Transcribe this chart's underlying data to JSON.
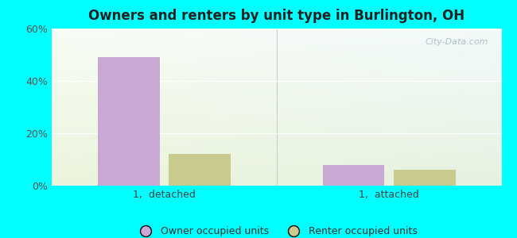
{
  "title": "Owners and renters by unit type in Burlington, OH",
  "categories": [
    "1,  detached",
    "1,  attached"
  ],
  "owner_values": [
    49,
    8
  ],
  "renter_values": [
    12,
    6
  ],
  "owner_color": "#c9a8d4",
  "renter_color": "#c8ca8e",
  "ylim": [
    0,
    60
  ],
  "yticks": [
    0,
    20,
    40,
    60
  ],
  "ytick_labels": [
    "0%",
    "20%",
    "40%",
    "60%"
  ],
  "outer_bg": "#00ffff",
  "watermark": "City-Data.com",
  "legend_owner": "Owner occupied units",
  "legend_renter": "Renter occupied units",
  "group_centers": [
    1.0,
    3.0
  ],
  "bar_width": 0.55,
  "bar_gap": 0.08,
  "xlim": [
    0,
    4.0
  ]
}
